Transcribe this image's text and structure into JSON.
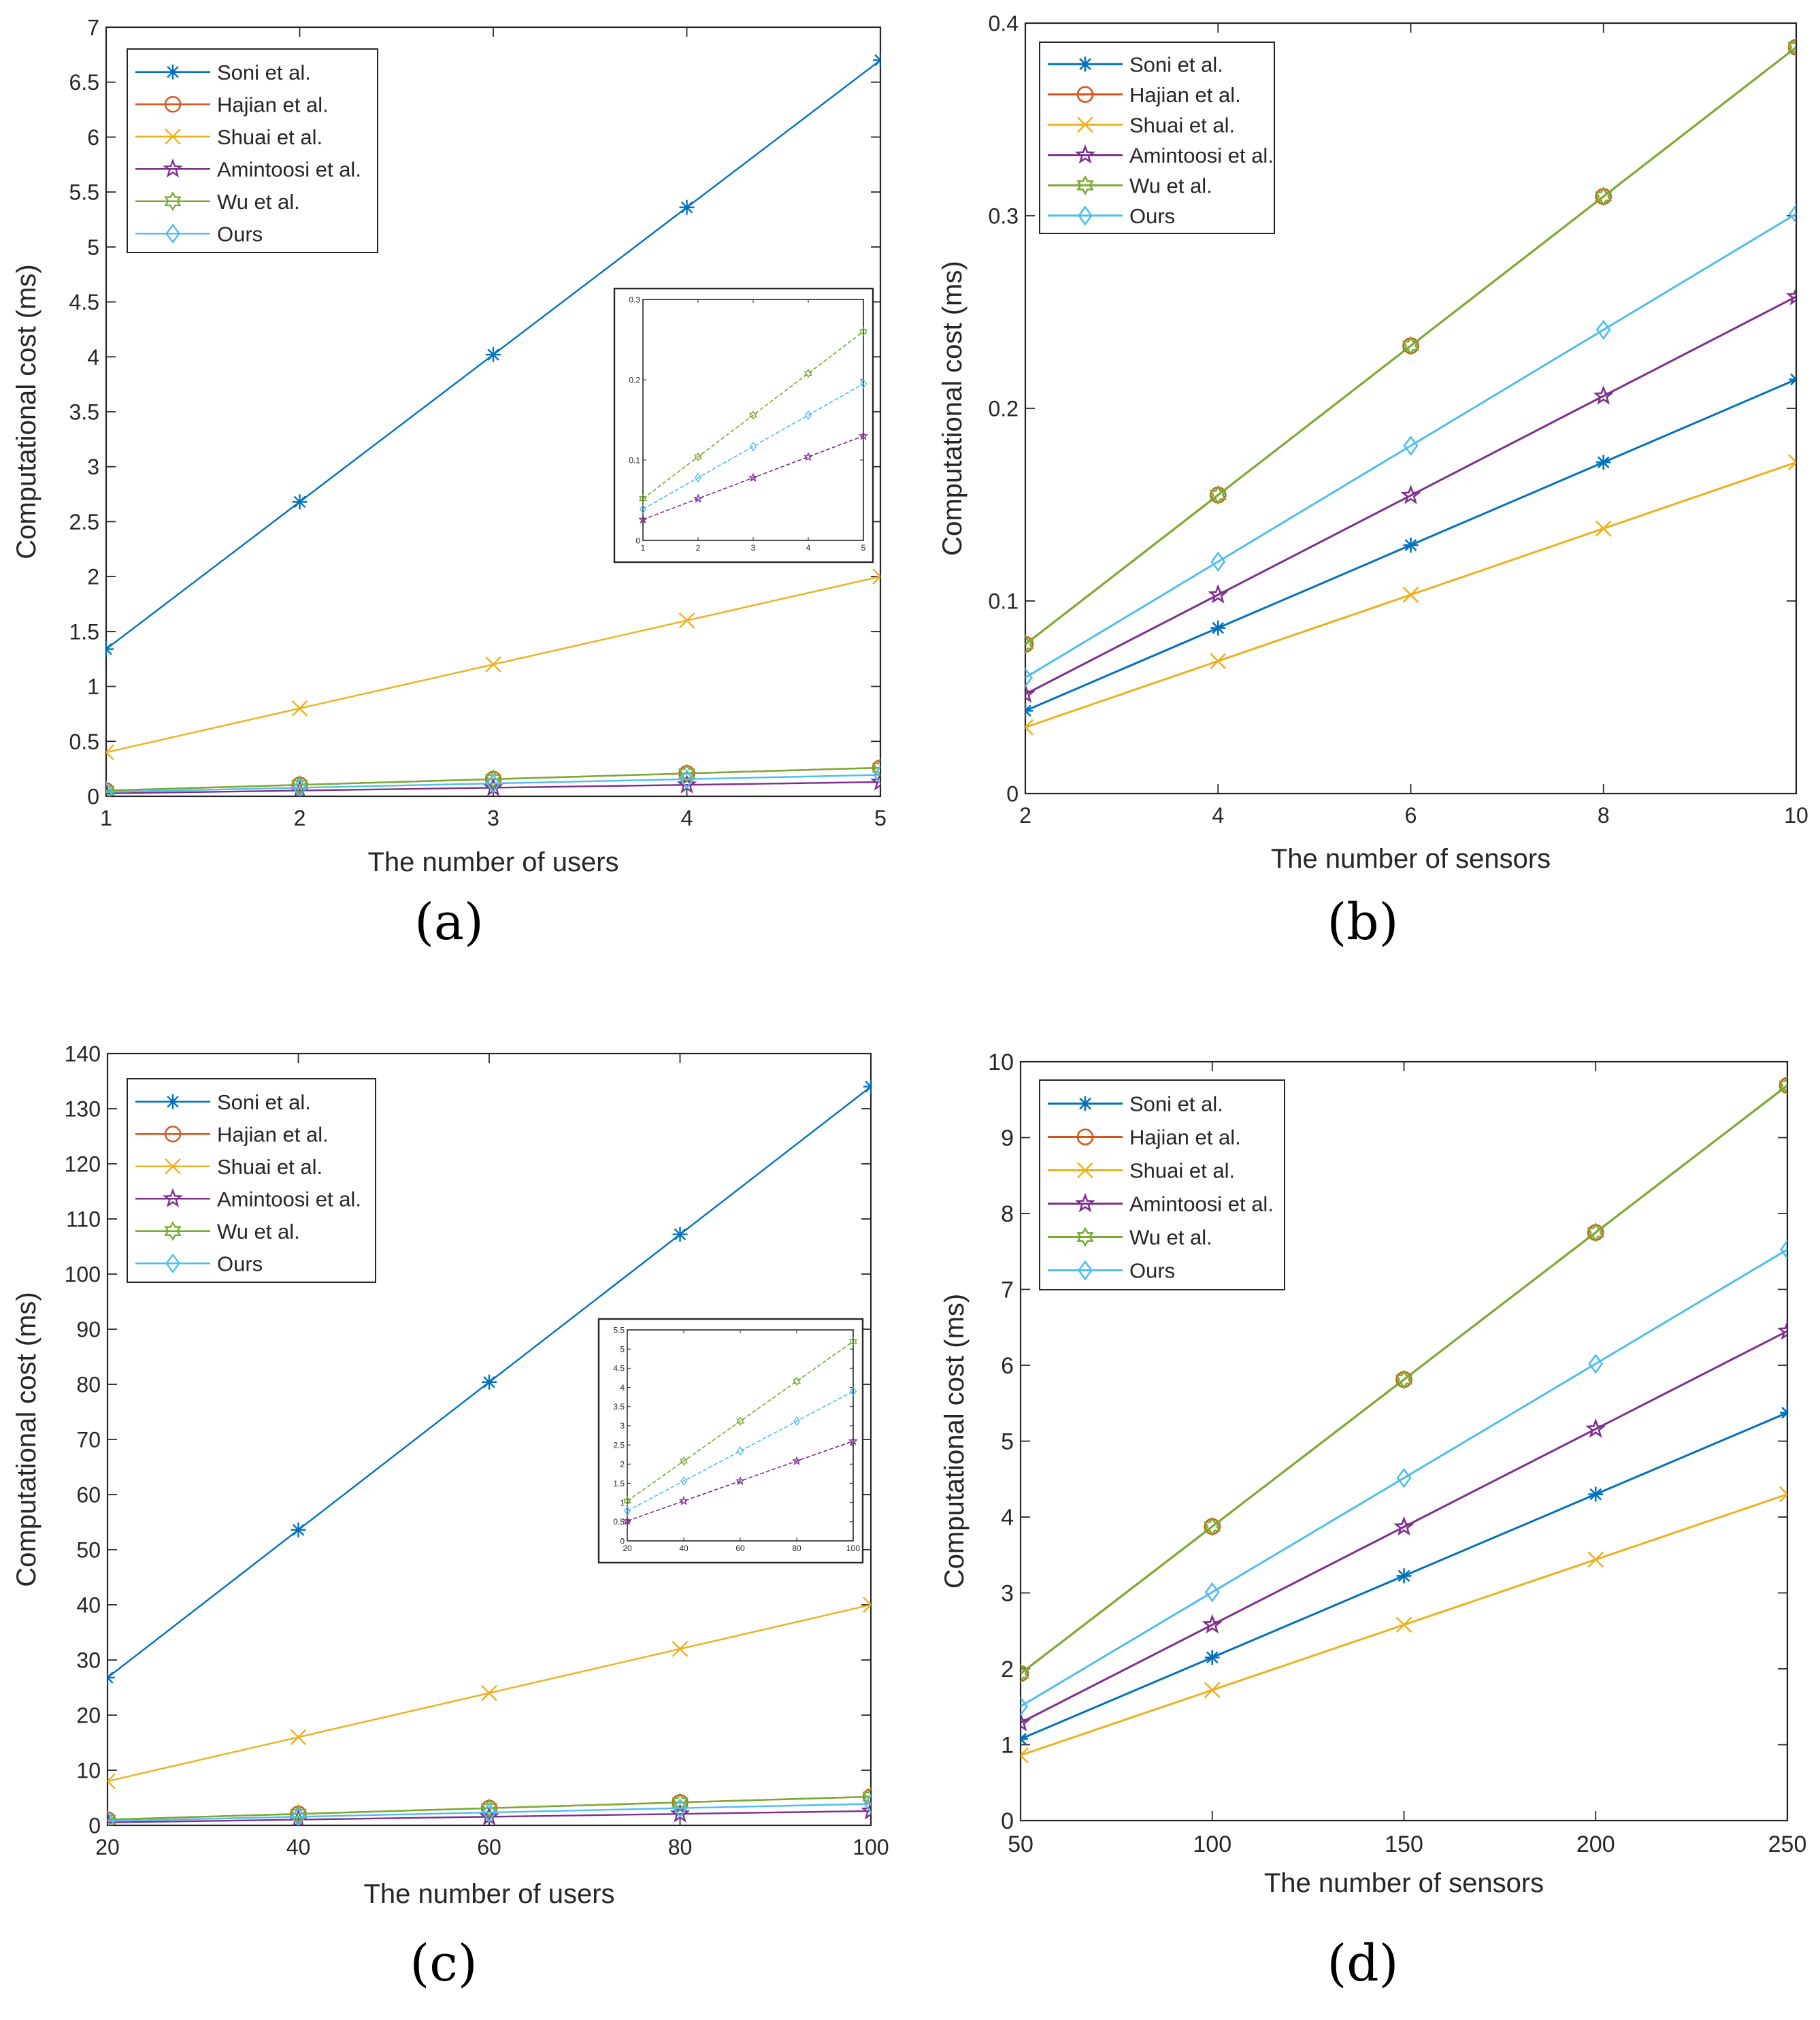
{
  "figure": {
    "captions": [
      "(a)",
      "(b)",
      "(c)",
      "(d)"
    ]
  },
  "series_styles": [
    {
      "name": "Soni et al.",
      "color": "#0072BD",
      "marker": "asterisk"
    },
    {
      "name": "Hajian et al.",
      "color": "#D95319",
      "marker": "circle"
    },
    {
      "name": "Shuai et al.",
      "color": "#EDB120",
      "marker": "x"
    },
    {
      "name": "Amintoosi et al.",
      "color": "#7E2F8E",
      "marker": "pentagram"
    },
    {
      "name": "Wu et al.",
      "color": "#77AC30",
      "marker": "hexagram"
    },
    {
      "name": "Ours",
      "color": "#4DBEEE",
      "marker": "diamond"
    }
  ],
  "chart_data": [
    {
      "type": "line",
      "caption": "(a)",
      "xlabel": "The number of users",
      "ylabel": "Computational cost (ms)",
      "x": [
        1,
        2,
        3,
        4,
        5
      ],
      "xlim": [
        1,
        5
      ],
      "ylim": [
        0,
        7
      ],
      "xticks": [
        "1",
        "2",
        "3",
        "4",
        "5"
      ],
      "yticks": [
        "0",
        "0.5",
        "1",
        "1.5",
        "2",
        "2.5",
        "3",
        "3.5",
        "4",
        "4.5",
        "5",
        "5.5",
        "6",
        "6.5",
        "7"
      ],
      "legend": "top-left",
      "series": [
        {
          "name": "Soni et al.",
          "values": [
            1.34,
            2.68,
            4.02,
            5.36,
            6.7
          ]
        },
        {
          "name": "Hajian et al.",
          "values": [
            0.052,
            0.104,
            0.156,
            0.208,
            0.26
          ]
        },
        {
          "name": "Shuai et al.",
          "values": [
            0.4,
            0.8,
            1.2,
            1.6,
            2.0
          ]
        },
        {
          "name": "Amintoosi et al.",
          "values": [
            0.026,
            0.052,
            0.078,
            0.104,
            0.13
          ]
        },
        {
          "name": "Wu et al.",
          "values": [
            0.052,
            0.104,
            0.156,
            0.208,
            0.26
          ]
        },
        {
          "name": "Ours",
          "values": [
            0.039,
            0.078,
            0.117,
            0.156,
            0.195
          ]
        }
      ],
      "inset": {
        "xlim": [
          1,
          5
        ],
        "ylim": [
          0,
          0.3
        ],
        "xticks": [
          "1",
          "2",
          "3",
          "4",
          "5"
        ],
        "yticks": [
          "0",
          "0.1",
          "0.2",
          "0.3"
        ],
        "series": [
          "Amintoosi et al.",
          "Wu et al.",
          "Ours"
        ]
      }
    },
    {
      "type": "line",
      "caption": "(b)",
      "xlabel": "The number of sensors",
      "ylabel": "Computational cost (ms)",
      "x": [
        2,
        4,
        6,
        8,
        10
      ],
      "xlim": [
        2,
        10
      ],
      "ylim": [
        0,
        0.4
      ],
      "xticks": [
        "2",
        "4",
        "6",
        "8",
        "10"
      ],
      "yticks": [
        "0",
        "0.1",
        "0.2",
        "0.3",
        "0.4"
      ],
      "legend": "top-left",
      "series": [
        {
          "name": "Soni et al.",
          "values": [
            0.043,
            0.086,
            0.129,
            0.172,
            0.215
          ]
        },
        {
          "name": "Hajian et al.",
          "values": [
            0.0775,
            0.155,
            0.2325,
            0.31,
            0.3875
          ]
        },
        {
          "name": "Shuai et al.",
          "values": [
            0.0344,
            0.0688,
            0.1032,
            0.1376,
            0.172
          ]
        },
        {
          "name": "Amintoosi et al.",
          "values": [
            0.0516,
            0.1032,
            0.1548,
            0.2064,
            0.258
          ]
        },
        {
          "name": "Wu et al.",
          "values": [
            0.0775,
            0.155,
            0.2325,
            0.31,
            0.3875
          ]
        },
        {
          "name": "Ours",
          "values": [
            0.0602,
            0.1204,
            0.1806,
            0.2408,
            0.301
          ]
        }
      ]
    },
    {
      "type": "line",
      "caption": "(c)",
      "xlabel": "The number of users",
      "ylabel": "Computational cost (ms)",
      "x": [
        20,
        40,
        60,
        80,
        100
      ],
      "xlim": [
        20,
        100
      ],
      "ylim": [
        0,
        140
      ],
      "xticks": [
        "20",
        "40",
        "60",
        "80",
        "100"
      ],
      "yticks": [
        "0",
        "10",
        "20",
        "30",
        "40",
        "50",
        "60",
        "70",
        "80",
        "90",
        "100",
        "110",
        "120",
        "130",
        "140"
      ],
      "legend": "top-left",
      "series": [
        {
          "name": "Soni et al.",
          "values": [
            26.8,
            53.6,
            80.4,
            107.2,
            134.0
          ]
        },
        {
          "name": "Hajian et al.",
          "values": [
            1.04,
            2.08,
            3.12,
            4.16,
            5.2
          ]
        },
        {
          "name": "Shuai et al.",
          "values": [
            8.0,
            16.0,
            24.0,
            32.0,
            40.0
          ]
        },
        {
          "name": "Amintoosi et al.",
          "values": [
            0.52,
            1.04,
            1.56,
            2.08,
            2.6
          ]
        },
        {
          "name": "Wu et al.",
          "values": [
            1.04,
            2.08,
            3.12,
            4.16,
            5.2
          ]
        },
        {
          "name": "Ours",
          "values": [
            0.78,
            1.56,
            2.34,
            3.12,
            3.9
          ]
        }
      ],
      "inset": {
        "xlim": [
          20,
          100
        ],
        "ylim": [
          0,
          5.5
        ],
        "xticks": [
          "20",
          "40",
          "60",
          "80",
          "100"
        ],
        "yticks": [
          "0",
          "0.5",
          "1",
          "1.5",
          "2",
          "2.5",
          "3",
          "3.5",
          "4",
          "4.5",
          "5",
          "5.5"
        ],
        "series": [
          "Amintoosi et al.",
          "Wu et al.",
          "Ours"
        ]
      }
    },
    {
      "type": "line",
      "caption": "(d)",
      "xlabel": "The number of sensors",
      "ylabel": "Computational cost (ms)",
      "x": [
        50,
        100,
        150,
        200,
        250
      ],
      "xlim": [
        50,
        250
      ],
      "ylim": [
        0,
        10
      ],
      "xticks": [
        "50",
        "100",
        "150",
        "200",
        "250"
      ],
      "yticks": [
        "0",
        "1",
        "2",
        "3",
        "4",
        "5",
        "6",
        "7",
        "8",
        "9",
        "10"
      ],
      "legend": "top-left",
      "series": [
        {
          "name": "Soni et al.",
          "values": [
            1.075,
            2.15,
            3.225,
            4.3,
            5.375
          ]
        },
        {
          "name": "Hajian et al.",
          "values": [
            1.9375,
            3.875,
            5.8125,
            7.75,
            9.6875
          ]
        },
        {
          "name": "Shuai et al.",
          "values": [
            0.86,
            1.72,
            2.58,
            3.44,
            4.3
          ]
        },
        {
          "name": "Amintoosi et al.",
          "values": [
            1.29,
            2.58,
            3.87,
            5.16,
            6.45
          ]
        },
        {
          "name": "Wu et al.",
          "values": [
            1.9375,
            3.875,
            5.8125,
            7.75,
            9.6875
          ]
        },
        {
          "name": "Ours",
          "values": [
            1.505,
            3.01,
            4.515,
            6.02,
            7.525
          ]
        }
      ]
    }
  ]
}
